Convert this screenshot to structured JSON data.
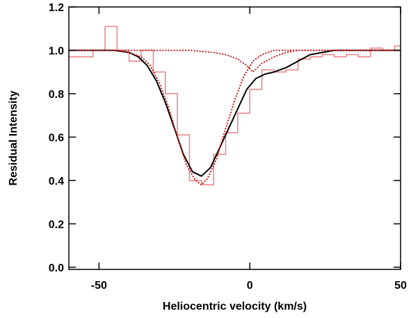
{
  "chart_data": {
    "type": "line",
    "title": "",
    "xlabel": "Heliocentric velocity (km/s)",
    "ylabel": "Residual Intensity",
    "xlim": [
      -60,
      50
    ],
    "ylim": [
      -0.01,
      1.2
    ],
    "xticks": [
      -50,
      0,
      50
    ],
    "xtick_labels": [
      "-50",
      "0",
      "50"
    ],
    "yticks": [
      0.0,
      0.2,
      0.4,
      0.6,
      0.8,
      1.0,
      1.2
    ],
    "ytick_labels": [
      "0.0",
      "0.2",
      "0.4",
      "0.6",
      "0.8",
      "1.0",
      "1.2"
    ],
    "grid": false,
    "legend": "none",
    "series": [
      {
        "style": "step",
        "color": "#e8888c",
        "bin_width": 4,
        "x": [
          -60,
          -56,
          -52,
          -48,
          -44,
          -40,
          -36,
          -32,
          -28,
          -24,
          -20,
          -16,
          -12,
          -8,
          -4,
          0,
          4,
          8,
          12,
          16,
          20,
          24,
          28,
          32,
          36,
          40,
          44,
          48
        ],
        "y": [
          0.97,
          0.97,
          1.0,
          1.11,
          1.0,
          0.95,
          1.0,
          0.9,
          0.8,
          0.61,
          0.4,
          0.38,
          0.52,
          0.62,
          0.71,
          0.82,
          0.91,
          0.9,
          0.91,
          0.96,
          0.97,
          0.98,
          0.97,
          0.98,
          0.97,
          1.01,
          1.0,
          1.02
        ]
      },
      {
        "style": "solid",
        "color": "#000000",
        "x": [
          -60,
          -45,
          -40,
          -37,
          -34,
          -31,
          -28,
          -25,
          -22,
          -19,
          -16,
          -13,
          -10,
          -7,
          -4,
          -1,
          2,
          5,
          8,
          12,
          16,
          20,
          24,
          28,
          32,
          40,
          50
        ],
        "y": [
          1.0,
          1.0,
          0.99,
          0.97,
          0.93,
          0.86,
          0.76,
          0.64,
          0.52,
          0.44,
          0.42,
          0.46,
          0.55,
          0.64,
          0.73,
          0.82,
          0.87,
          0.89,
          0.9,
          0.92,
          0.95,
          0.98,
          0.99,
          1.0,
          1.0,
          1.0,
          1.0
        ]
      },
      {
        "style": "dotted",
        "color": "#d01818",
        "x": [
          -60,
          -45,
          -40,
          -36,
          -33,
          -30,
          -27,
          -24,
          -21,
          -18,
          -16,
          -14,
          -11,
          -8,
          -5,
          -2,
          1,
          4,
          8,
          15,
          30,
          50
        ],
        "y": [
          1.0,
          1.0,
          0.99,
          0.97,
          0.93,
          0.85,
          0.74,
          0.6,
          0.47,
          0.4,
          0.38,
          0.41,
          0.5,
          0.64,
          0.77,
          0.88,
          0.95,
          0.98,
          1.0,
          1.0,
          1.0,
          1.0
        ]
      },
      {
        "style": "dotted",
        "color": "#d01818",
        "x": [
          -60,
          -30,
          -20,
          -12,
          -8,
          -4,
          -1,
          1,
          4,
          8,
          12,
          16,
          20,
          24,
          30,
          40,
          50
        ],
        "y": [
          1.0,
          1.0,
          1.0,
          0.99,
          0.98,
          0.96,
          0.93,
          0.9,
          0.94,
          0.97,
          0.99,
          1.0,
          1.0,
          1.0,
          1.0,
          1.0,
          1.0
        ]
      }
    ]
  }
}
